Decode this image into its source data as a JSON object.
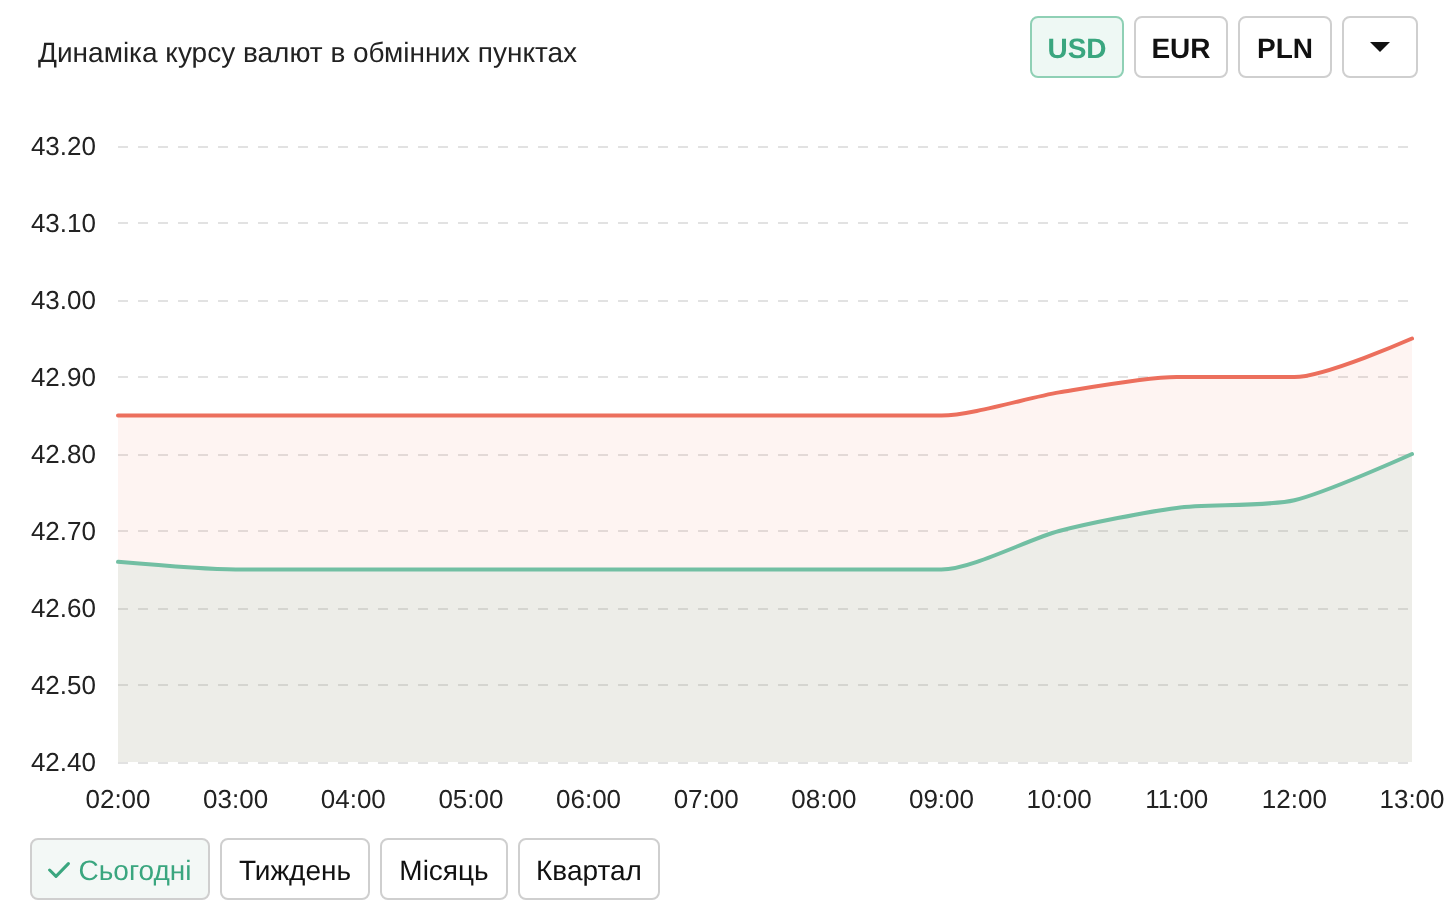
{
  "chart_data": {
    "type": "area",
    "title": "Динаміка курсу валют в обмінних пунктах",
    "x": [
      2,
      3,
      4,
      5,
      6,
      7,
      8,
      9,
      10,
      11,
      12,
      13
    ],
    "series": [
      {
        "color": "#ec6f5d",
        "values": [
          42.85,
          42.85,
          42.85,
          42.85,
          42.85,
          42.85,
          42.85,
          42.85,
          42.88,
          42.9,
          42.9,
          42.95
        ]
      },
      {
        "color": "#72bfa3",
        "values": [
          42.66,
          42.65,
          42.65,
          42.65,
          42.65,
          42.65,
          42.65,
          42.65,
          42.7,
          42.73,
          42.74,
          42.8
        ]
      }
    ],
    "xlim": [
      2,
      13
    ],
    "xticks": [
      {
        "value": 2,
        "label": "02:00"
      },
      {
        "value": 3,
        "label": "03:00"
      },
      {
        "value": 4,
        "label": "04:00"
      },
      {
        "value": 5,
        "label": "05:00"
      },
      {
        "value": 6,
        "label": "06:00"
      },
      {
        "value": 7,
        "label": "07:00"
      },
      {
        "value": 8,
        "label": "08:00"
      },
      {
        "value": 9,
        "label": "09:00"
      },
      {
        "value": 10,
        "label": "10:00"
      },
      {
        "value": 11,
        "label": "11:00"
      },
      {
        "value": 12,
        "label": "12:00"
      },
      {
        "value": 13,
        "label": "13:00"
      }
    ],
    "ylim": [
      42.4,
      43.2
    ],
    "yticks": [
      {
        "value": 42.4,
        "label": "42.40"
      },
      {
        "value": 42.5,
        "label": "42.50"
      },
      {
        "value": 42.6,
        "label": "42.60"
      },
      {
        "value": 42.7,
        "label": "42.70"
      },
      {
        "value": 42.8,
        "label": "42.80"
      },
      {
        "value": 42.9,
        "label": "42.90"
      },
      {
        "value": 43.0,
        "label": "43.00"
      },
      {
        "value": 43.1,
        "label": "43.10"
      },
      {
        "value": 43.2,
        "label": "43.20"
      }
    ],
    "grid": "y",
    "annotations": [
      "USD",
      "EUR",
      "PLN",
      "Сьогодні",
      "Тиждень",
      "Місяць",
      "Квартал"
    ]
  }
}
